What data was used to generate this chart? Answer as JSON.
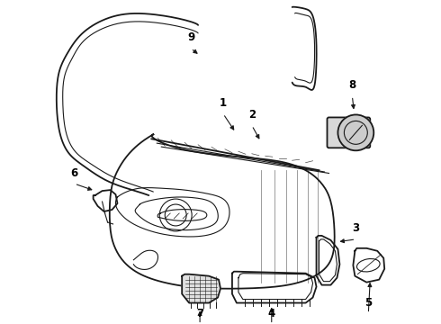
{
  "background_color": "#ffffff",
  "line_color": "#1a1a1a",
  "label_color": "#000000",
  "label_fontsize": 8.5,
  "label_fontweight": "bold",
  "figsize": [
    4.9,
    3.6
  ],
  "dpi": 100
}
